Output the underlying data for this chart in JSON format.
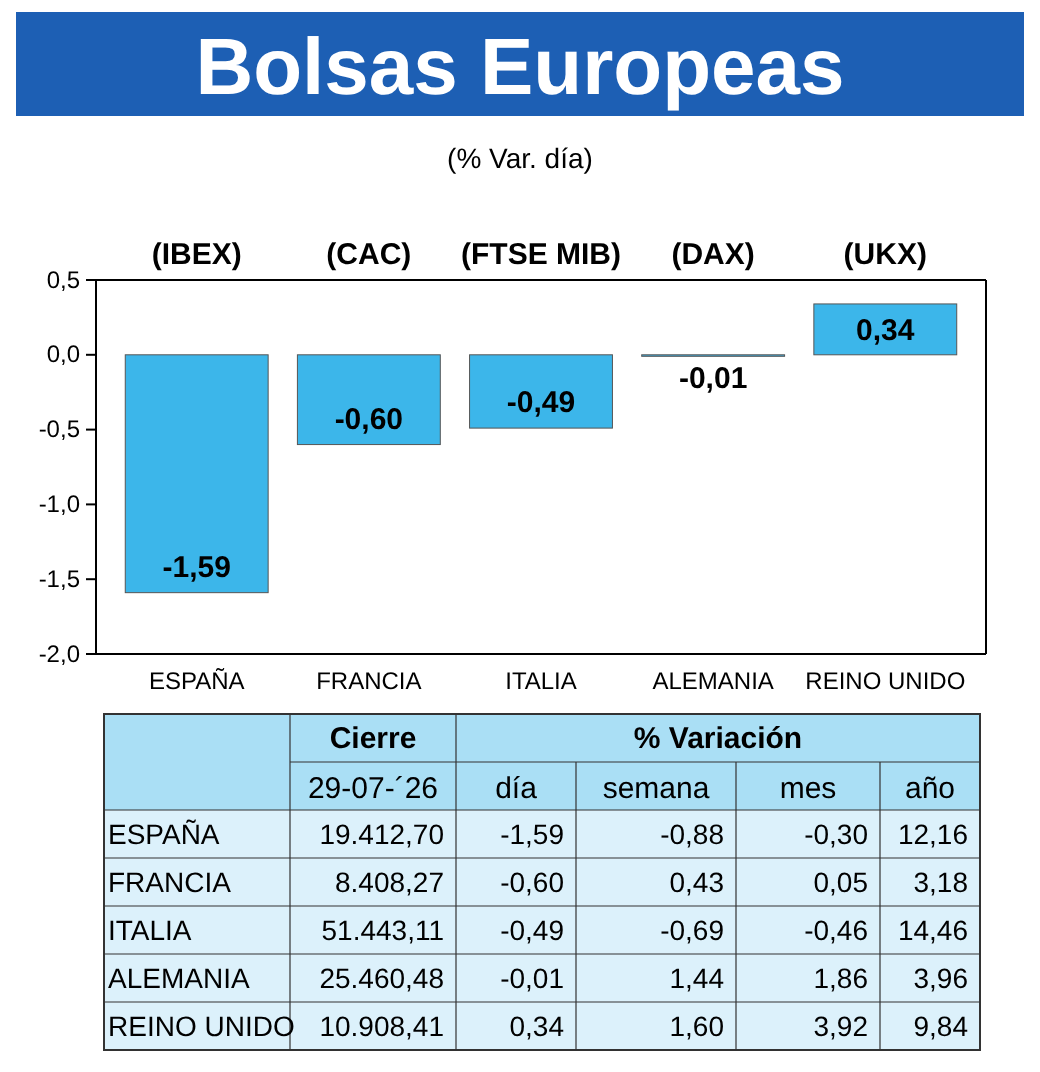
{
  "chart_data": [
    {
      "type": "bar",
      "title": "Bolsas Europeas",
      "subtitle": "(% Var. día)",
      "categories": [
        "ESPAÑA",
        "FRANCIA",
        "ITALIA",
        "ALEMANIA",
        "REINO UNIDO"
      ],
      "values": [
        -1.59,
        -0.6,
        -0.49,
        -0.01,
        0.34
      ],
      "color": "#3cb6ea",
      "ylim": [
        -2.0,
        0.5
      ],
      "yticks": [
        {
          "value": -2.0,
          "label": "-2,0"
        },
        {
          "value": -1.5,
          "label": "-1,5"
        },
        {
          "value": -1.0,
          "label": "-1,0"
        },
        {
          "value": -0.5,
          "label": "-0,5"
        },
        {
          "value": 0.0,
          "label": "0,0"
        },
        {
          "value": 0.5,
          "label": "0,5"
        }
      ],
      "value_labels": [
        "-1,59",
        "-0,60",
        "-0,49",
        "-0,01",
        "0,34"
      ],
      "annotations": [
        "(IBEX)",
        "(CAC)",
        "(FTSE MIB)",
        "(DAX)",
        "(UKX)"
      ]
    },
    {
      "type": "other",
      "annotations": [
        "Cierre",
        "% Variación"
      ],
      "categories": [
        "29-07-´26",
        "día",
        "semana",
        "mes",
        "año"
      ],
      "y_categories": [
        "ESPAÑA",
        "FRANCIA",
        "ITALIA",
        "ALEMANIA",
        "REINO UNIDO"
      ],
      "cell_labels": [
        [
          "19.412,70",
          "-1,59",
          "-0,88",
          "-0,30",
          "12,16"
        ],
        [
          "8.408,27",
          "-0,60",
          "0,43",
          "0,05",
          "3,18"
        ],
        [
          "51.443,11",
          "-0,49",
          "-0,69",
          "-0,46",
          "14,46"
        ],
        [
          "25.460,48",
          "-0,01",
          "1,44",
          "1,86",
          "3,96"
        ],
        [
          "10.908,41",
          "0,34",
          "1,60",
          "3,92",
          "9,84"
        ]
      ]
    }
  ]
}
